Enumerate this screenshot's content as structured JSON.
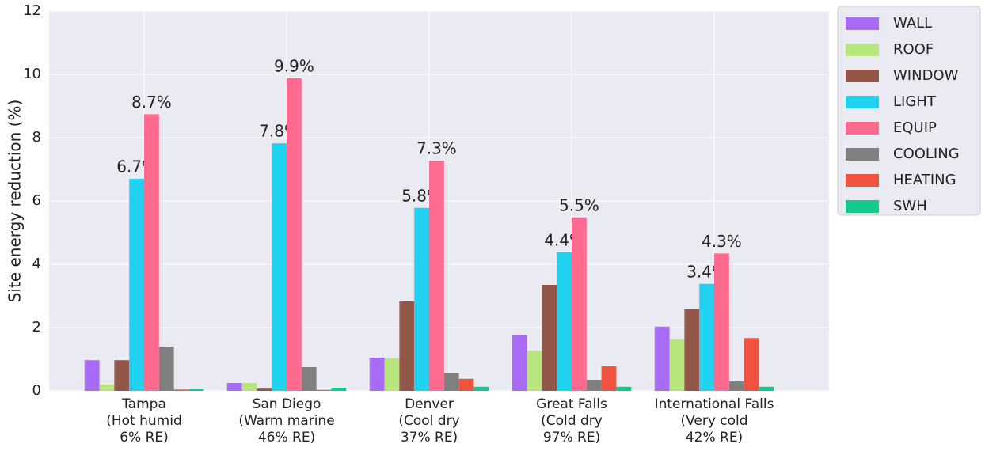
{
  "chart_data": {
    "type": "bar",
    "ylabel": "Site energy reduction (%)",
    "categories": [
      [
        "Tampa",
        "(Hot humid",
        "6% RE)"
      ],
      [
        "San Diego",
        "(Warm marine",
        "46% RE)"
      ],
      [
        "Denver",
        "(Cool dry",
        "37% RE)"
      ],
      [
        "Great Falls",
        "(Cold dry",
        "97% RE)"
      ],
      [
        "International Falls",
        "(Very cold",
        "42% RE)"
      ]
    ],
    "series": [
      {
        "name": "WALL",
        "color": "#a96bf5",
        "values": [
          0.97,
          0.25,
          1.05,
          1.75,
          2.03
        ]
      },
      {
        "name": "ROOF",
        "color": "#b9e57e",
        "values": [
          0.2,
          0.25,
          1.03,
          1.27,
          1.63
        ]
      },
      {
        "name": "WINDOW",
        "color": "#93574a",
        "values": [
          0.97,
          0.07,
          2.83,
          3.35,
          2.58
        ]
      },
      {
        "name": "LIGHT",
        "color": "#1fd3f0",
        "values": [
          6.7,
          7.82,
          5.78,
          4.38,
          3.38
        ],
        "value_labels": [
          "6.7%",
          "7.8%",
          "5.8%",
          "4.4%",
          "3.4%"
        ]
      },
      {
        "name": "EQUIP",
        "color": "#ff6a8f",
        "values": [
          8.74,
          9.88,
          7.27,
          5.48,
          4.34
        ],
        "value_labels": [
          "8.7%",
          "9.9%",
          "7.3%",
          "5.5%",
          "4.3%"
        ]
      },
      {
        "name": "COOLING",
        "color": "#808080",
        "values": [
          1.4,
          0.75,
          0.55,
          0.35,
          0.3
        ]
      },
      {
        "name": "HEATING",
        "color": "#f0533f",
        "values": [
          0.04,
          0.03,
          0.38,
          0.78,
          1.67
        ]
      },
      {
        "name": "SWH",
        "color": "#15c98b",
        "values": [
          0.05,
          0.1,
          0.13,
          0.13,
          0.13
        ]
      }
    ],
    "ylim": [
      0,
      12
    ],
    "yticks": [
      0,
      2,
      4,
      6,
      8,
      10,
      12
    ],
    "grid": true,
    "legend": "outside upper right"
  }
}
